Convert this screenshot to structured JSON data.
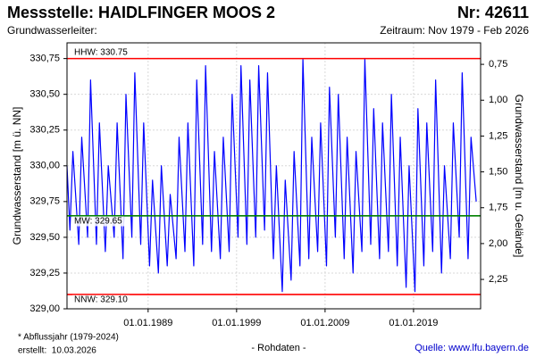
{
  "chart_data": {
    "type": "line",
    "title": "Messstelle: HAIDLFINGER MOOS 2",
    "number": "Nr: 42611",
    "subtitle": "Grundwasserleiter:",
    "period": "Zeitraum: Nov 1979 - Feb 2026",
    "ylabel": "Grundwasserstand [m ü. NN]",
    "y2label": "Grundwasserstand [m u. Gelände]",
    "footnote": "* Abflussjahr (1979-2024)",
    "created": "erstellt:  10.03.2026",
    "rawdata": "- Rohdaten -",
    "source": "Quelle: www.lfu.bayern.de",
    "color": "#0000ff",
    "grid": true,
    "xlim": [
      "1979-11-01",
      "2026-08-01"
    ],
    "xticks": [
      {
        "value": "1989-01-01",
        "label": "01.01.1989"
      },
      {
        "value": "1999-01-01",
        "label": "01.01.1999"
      },
      {
        "value": "2009-01-01",
        "label": "01.01.2009"
      },
      {
        "value": "2019-01-01",
        "label": "01.01.2019"
      }
    ],
    "ylim": [
      329.0,
      330.86
    ],
    "yticks": [
      {
        "value": 329.0,
        "label": "329,00"
      },
      {
        "value": 329.25,
        "label": "329,25"
      },
      {
        "value": 329.5,
        "label": "329,50"
      },
      {
        "value": 329.75,
        "label": "329,75"
      },
      {
        "value": 330.0,
        "label": "330,00"
      },
      {
        "value": 330.25,
        "label": "330,25"
      },
      {
        "value": 330.5,
        "label": "330,50"
      },
      {
        "value": 330.75,
        "label": "330,75"
      }
    ],
    "y2lim": [
      2.455,
      0.6
    ],
    "y2ticks": [
      {
        "value": 0.75,
        "label": "0,75"
      },
      {
        "value": 1.0,
        "label": "1,00"
      },
      {
        "value": 1.25,
        "label": "1,25"
      },
      {
        "value": 1.5,
        "label": "1,50"
      },
      {
        "value": 1.75,
        "label": "1,75"
      },
      {
        "value": 2.0,
        "label": "2,00"
      },
      {
        "value": 2.25,
        "label": "2,25"
      }
    ],
    "reference_lines": [
      {
        "label": "HHW: 330.75",
        "value": 330.75,
        "color": "#ff0000"
      },
      {
        "label": "MW: 329.65",
        "value": 329.65,
        "color": "#008000"
      },
      {
        "label": "NNW: 329.10",
        "value": 329.1,
        "color": "#ff0000"
      }
    ],
    "x": [
      "1979-11-01",
      "1980-03-01",
      "1980-07-01",
      "1981-03-01",
      "1981-07-01",
      "1982-03-01",
      "1982-07-01",
      "1983-03-01",
      "1983-07-01",
      "1984-03-01",
      "1984-07-01",
      "1985-03-01",
      "1985-07-01",
      "1986-03-01",
      "1986-07-01",
      "1987-03-01",
      "1987-07-01",
      "1988-03-01",
      "1988-07-01",
      "1989-03-01",
      "1989-07-01",
      "1990-03-01",
      "1990-07-01",
      "1991-03-01",
      "1991-07-01",
      "1992-03-01",
      "1992-07-01",
      "1993-03-01",
      "1993-07-01",
      "1994-03-01",
      "1994-07-01",
      "1995-03-01",
      "1995-07-01",
      "1996-03-01",
      "1996-07-01",
      "1997-03-01",
      "1997-07-01",
      "1998-03-01",
      "1998-07-01",
      "1999-03-01",
      "1999-07-01",
      "2000-03-01",
      "2000-07-01",
      "2001-03-01",
      "2001-07-01",
      "2002-03-01",
      "2002-07-01",
      "2003-03-01",
      "2003-07-01",
      "2004-03-01",
      "2004-07-01",
      "2005-03-01",
      "2005-07-01",
      "2006-03-01",
      "2006-07-01",
      "2007-03-01",
      "2007-07-01",
      "2008-03-01",
      "2008-07-01",
      "2009-03-01",
      "2009-07-01",
      "2010-03-01",
      "2010-07-01",
      "2011-03-01",
      "2011-07-01",
      "2012-03-01",
      "2012-07-01",
      "2013-03-01",
      "2013-07-01",
      "2014-03-01",
      "2014-07-01",
      "2015-03-01",
      "2015-07-01",
      "2016-03-01",
      "2016-07-01",
      "2017-03-01",
      "2017-07-01",
      "2018-03-01",
      "2018-07-01",
      "2019-03-01",
      "2019-07-01",
      "2020-03-01",
      "2020-07-01",
      "2021-03-01",
      "2021-07-01",
      "2022-03-01",
      "2022-07-01",
      "2023-03-01",
      "2023-07-01",
      "2024-03-01",
      "2024-07-01",
      "2025-03-01",
      "2025-07-01",
      "2026-02-01"
    ],
    "values": [
      330.0,
      329.55,
      330.1,
      329.45,
      330.2,
      329.5,
      330.6,
      329.45,
      330.3,
      329.4,
      330.0,
      329.5,
      330.3,
      329.35,
      330.5,
      329.5,
      330.65,
      329.45,
      330.3,
      329.3,
      329.9,
      329.25,
      330.0,
      329.3,
      329.8,
      329.35,
      330.2,
      329.4,
      330.3,
      329.3,
      330.6,
      329.45,
      330.7,
      329.4,
      330.1,
      329.35,
      330.2,
      329.4,
      330.5,
      329.5,
      330.7,
      329.45,
      330.6,
      329.5,
      330.7,
      329.55,
      330.65,
      329.35,
      330.0,
      329.12,
      329.9,
      329.2,
      330.1,
      329.3,
      330.75,
      329.35,
      330.2,
      329.4,
      330.3,
      329.3,
      330.55,
      329.5,
      330.5,
      329.35,
      330.2,
      329.25,
      330.1,
      329.4,
      330.75,
      329.45,
      330.4,
      329.35,
      330.3,
      329.4,
      330.5,
      329.3,
      330.2,
      329.15,
      330.0,
      329.12,
      330.4,
      329.3,
      330.3,
      329.4,
      330.6,
      329.25,
      330.0,
      329.35,
      330.3,
      329.5,
      330.65,
      329.35,
      330.2,
      329.75
    ]
  }
}
